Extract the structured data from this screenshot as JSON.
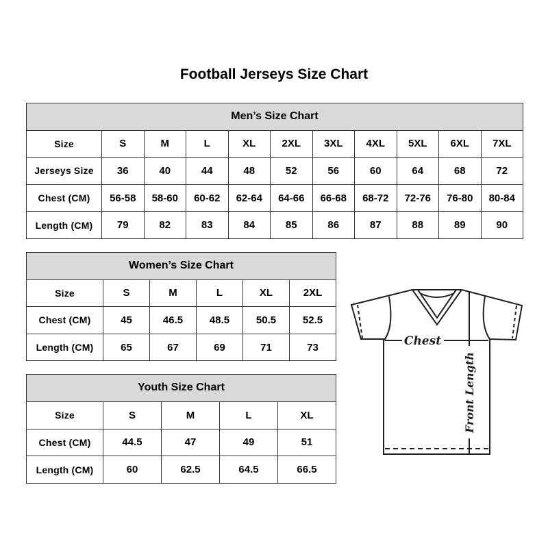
{
  "title": "Football Jerseys Size Chart",
  "men": {
    "title": "Men’s Size Chart",
    "rows": [
      {
        "label": "Size",
        "values": [
          "S",
          "M",
          "L",
          "XL",
          "2XL",
          "3XL",
          "4XL",
          "5XL",
          "6XL",
          "7XL"
        ]
      },
      {
        "label": "Jerseys Size",
        "values": [
          "36",
          "40",
          "44",
          "48",
          "52",
          "56",
          "60",
          "64",
          "68",
          "72"
        ]
      },
      {
        "label": "Chest (CM)",
        "values": [
          "56-58",
          "58-60",
          "60-62",
          "62-64",
          "64-66",
          "66-68",
          "68-72",
          "72-76",
          "76-80",
          "80-84"
        ]
      },
      {
        "label": "Length (CM)",
        "values": [
          "79",
          "82",
          "83",
          "84",
          "85",
          "86",
          "87",
          "88",
          "89",
          "90"
        ]
      }
    ]
  },
  "women": {
    "title": "Women’s Size Chart",
    "rows": [
      {
        "label": "Size",
        "values": [
          "S",
          "M",
          "L",
          "XL",
          "2XL"
        ]
      },
      {
        "label": "Chest (CM)",
        "values": [
          "45",
          "46.5",
          "48.5",
          "50.5",
          "52.5"
        ]
      },
      {
        "label": "Length (CM)",
        "values": [
          "65",
          "67",
          "69",
          "71",
          "73"
        ]
      }
    ]
  },
  "youth": {
    "title": "Youth Size Chart",
    "rows": [
      {
        "label": "Size",
        "values": [
          "S",
          "M",
          "L",
          "XL"
        ]
      },
      {
        "label": "Chest (CM)",
        "values": [
          "44.5",
          "47",
          "49",
          "51"
        ]
      },
      {
        "label": "Length (CM)",
        "values": [
          "60",
          "62.5",
          "64.5",
          "66.5"
        ]
      }
    ]
  },
  "diagram": {
    "chest_label": "Chest",
    "length_label": "Front Length"
  },
  "colors": {
    "header_bg": "#d9d9d9",
    "border": "#333333"
  }
}
